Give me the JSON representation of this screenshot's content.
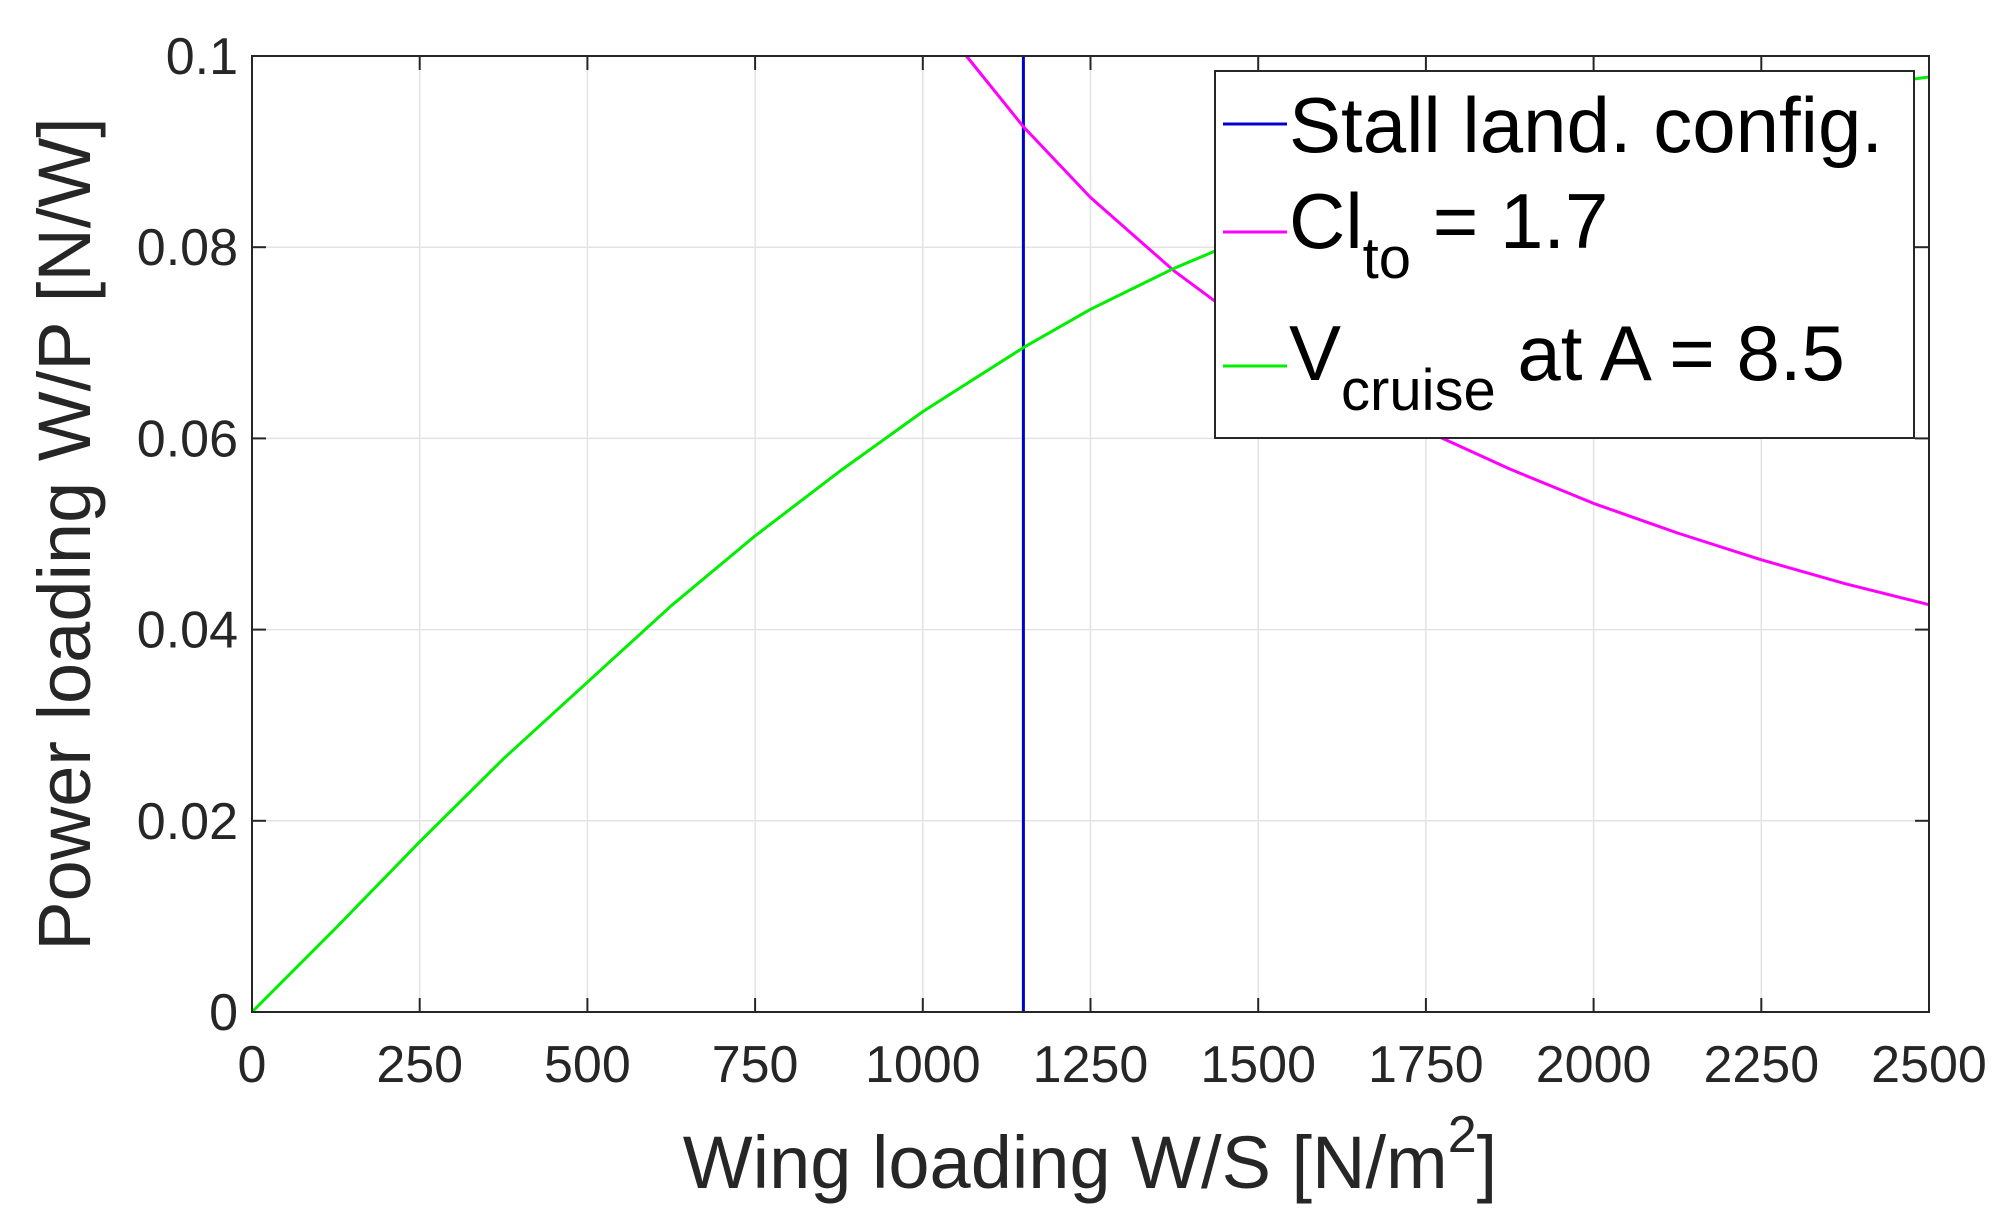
{
  "chart_data": {
    "type": "line",
    "xlabel": "Wing loading W/S [N/m",
    "xlabel_sup": "2",
    "xlabel_end": "]",
    "ylabel": "Power loading W/P [N/W]",
    "xlim": [
      0,
      2500
    ],
    "ylim": [
      0,
      0.1
    ],
    "x_ticks": [
      0,
      250,
      500,
      750,
      1000,
      1250,
      1500,
      1750,
      2000,
      2250,
      2500
    ],
    "x_tick_labels": [
      "0",
      "250",
      "500",
      "750",
      "1000",
      "1250",
      "1500",
      "1750",
      "2000",
      "2250",
      "2500"
    ],
    "y_ticks": [
      0,
      0.02,
      0.04,
      0.06,
      0.08,
      0.1
    ],
    "y_tick_labels": [
      "0",
      "0.02",
      "0.04",
      "0.06",
      "0.08",
      "0.1"
    ],
    "grid": true,
    "legend_position": "top-right",
    "series": [
      {
        "name": "Stall land. config.",
        "color": "#0000cc",
        "kind": "vertical",
        "x": [
          1150,
          1150
        ],
        "y": [
          0,
          0.1
        ]
      },
      {
        "name": "Cl",
        "name_sub": "to",
        "name_rest": " = 1.7",
        "color": "#ff00ff",
        "kind": "line",
        "x": [
          1065,
          1150,
          1250,
          1375,
          1500,
          1625,
          1750,
          1875,
          2000,
          2125,
          2250,
          2375,
          2500
        ],
        "y": [
          0.1,
          0.0926,
          0.0852,
          0.0775,
          0.071,
          0.0655,
          0.0608,
          0.0568,
          0.0532,
          0.0501,
          0.0473,
          0.0448,
          0.0426
        ]
      },
      {
        "name": "V",
        "name_sub": "cruise",
        "name_rest": " at A = 8.5",
        "color": "#00ee00",
        "kind": "line",
        "x": [
          0,
          125,
          250,
          375,
          500,
          625,
          750,
          875,
          1000,
          1150,
          1250,
          1375,
          1500,
          1750,
          2000,
          2250,
          2500
        ],
        "y": [
          0,
          0.0088,
          0.0178,
          0.0265,
          0.0345,
          0.0425,
          0.0498,
          0.0565,
          0.0628,
          0.0695,
          0.0735,
          0.0778,
          0.0815,
          0.0875,
          0.0922,
          0.0955,
          0.0978
        ]
      }
    ]
  }
}
